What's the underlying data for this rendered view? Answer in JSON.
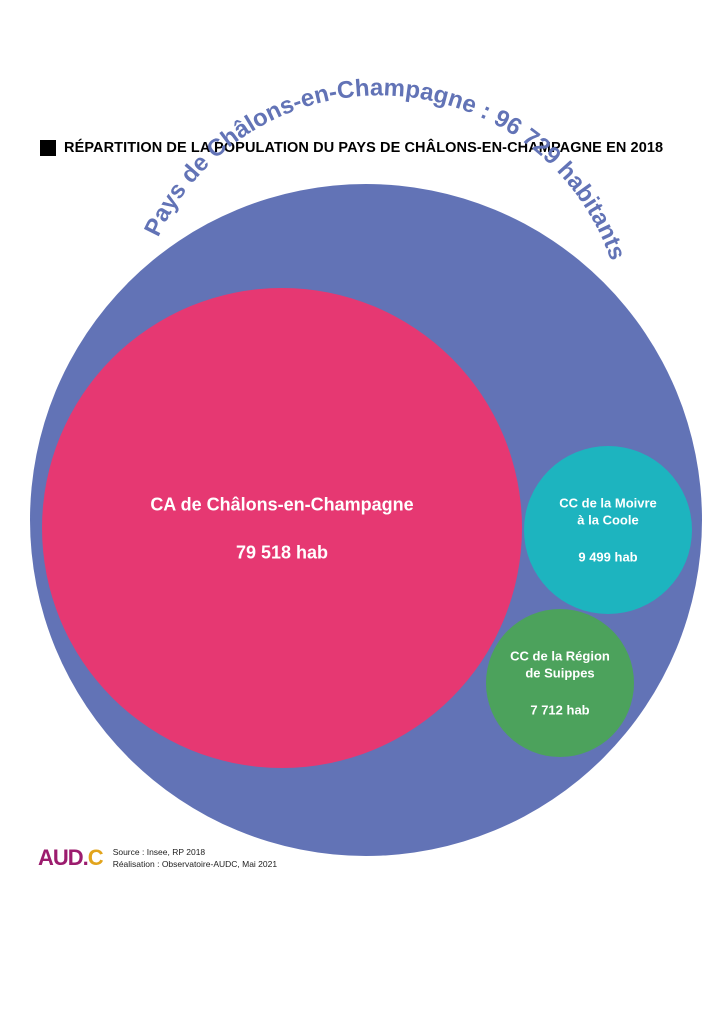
{
  "title": "RÉPARTITION DE LA POPULATION DU PAYS DE CHÂLONS-EN-CHAMPAGNE EN 2018",
  "chart_data": {
    "type": "bubble",
    "outer": {
      "label": "Pays de Châlons-en-Champagne : 96 729 habitants",
      "name": "Pays de Châlons-en-Champagne",
      "value": 96729,
      "color": "#6273b6",
      "label_color": "#6273b6"
    },
    "items": [
      {
        "lines": [
          "CA de Châlons-en-Champagne"
        ],
        "value": 79518,
        "value_label": "79 518 hab",
        "color": "#e63872"
      },
      {
        "lines": [
          "CC de la Moivre",
          "à la Coole"
        ],
        "value": 9499,
        "value_label": "9 499 hab",
        "color": "#1db4bf"
      },
      {
        "lines": [
          "CC de la Région",
          "de Suippes"
        ],
        "value": 7712,
        "value_label": "7 712 hab",
        "color": "#4ca25c"
      }
    ]
  },
  "footer": {
    "logo_main": "AUD",
    "logo_dot": ".",
    "logo_end": "C",
    "source": "Source : Insee, RP 2018",
    "realisation": "Réalisation : Observatoire-AUDC, Mai 2021"
  }
}
